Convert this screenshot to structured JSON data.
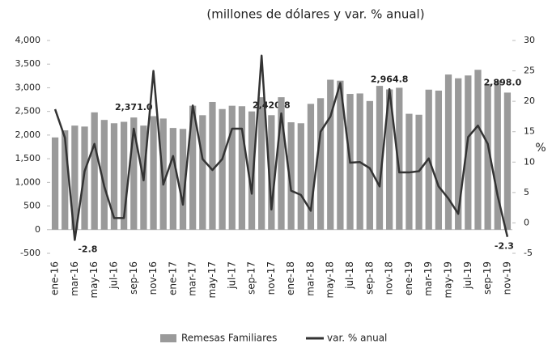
{
  "chart_data": {
    "type": "bar-line",
    "title": "(millones de dólares y var. % anual)",
    "y2_label": "%",
    "categories": [
      "ene-16",
      null,
      "mar-16",
      null,
      "may-16",
      null,
      "jul-16",
      null,
      "sep-16",
      null,
      "nov-16",
      null,
      "ene-17",
      null,
      "mar-17",
      null,
      "may-17",
      null,
      "jul-17",
      null,
      "sep-17",
      null,
      "nov-17",
      null,
      "ene-18",
      null,
      "mar-18",
      null,
      "may-18",
      null,
      "jul-18",
      null,
      "sep-18",
      null,
      "nov-18",
      null,
      "ene-19",
      null,
      "mar-19",
      null,
      "may-19",
      null,
      "jul-19",
      null,
      "sep-19",
      null,
      "nov-19"
    ],
    "series": [
      {
        "name": "Remesas Familiares",
        "type": "bar",
        "color": "#9a9a9a",
        "values": [
          1950,
          2100,
          2200,
          2180,
          2480,
          2320,
          2250,
          2280,
          2371,
          2200,
          2400,
          2350,
          2150,
          2130,
          2620,
          2420,
          2700,
          2550,
          2620,
          2610,
          2500,
          2800,
          2420.8,
          2800,
          2270,
          2250,
          2660,
          2780,
          3170,
          3150,
          2870,
          2880,
          2720,
          3040,
          2964.8,
          3000,
          2450,
          2430,
          2960,
          2940,
          3280,
          3200,
          3260,
          3380,
          3080,
          3150,
          2898
        ],
        "value_labels": [
          null,
          null,
          null,
          null,
          null,
          null,
          null,
          null,
          "2,371.0",
          null,
          null,
          null,
          null,
          null,
          null,
          null,
          null,
          null,
          null,
          null,
          null,
          null,
          "2,420.8",
          null,
          null,
          null,
          null,
          null,
          null,
          null,
          null,
          null,
          null,
          null,
          "2,964.8",
          null,
          null,
          null,
          null,
          null,
          null,
          null,
          null,
          null,
          null,
          null,
          "2,898.0"
        ]
      },
      {
        "name": "var. % anual",
        "type": "line",
        "axis": "y2",
        "color": "#333333",
        "values": [
          18.7,
          14,
          -2.8,
          8.5,
          13,
          6,
          0.8,
          0.8,
          15.5,
          7,
          25,
          6.3,
          11,
          3,
          19.3,
          10.5,
          8.7,
          10.5,
          15.5,
          15.5,
          4.8,
          27.5,
          2.2,
          18,
          5.3,
          4.6,
          2,
          15,
          17.5,
          23,
          9.9,
          10,
          9,
          6,
          22,
          8.3,
          8.3,
          8.5,
          10.6,
          6,
          4,
          1.5,
          14.1,
          16,
          13,
          4.5,
          -2.3
        ],
        "value_labels": [
          null,
          null,
          "-2.8",
          null,
          null,
          null,
          null,
          null,
          null,
          null,
          null,
          null,
          null,
          null,
          null,
          null,
          null,
          null,
          null,
          null,
          null,
          null,
          null,
          null,
          null,
          null,
          null,
          null,
          null,
          null,
          null,
          null,
          null,
          null,
          null,
          null,
          null,
          null,
          null,
          null,
          null,
          null,
          null,
          null,
          null,
          null,
          "-2.3"
        ]
      }
    ],
    "ylim": [
      -500,
      4000
    ],
    "yticks": [
      {
        "value": 4000,
        "label": "4,000"
      },
      {
        "value": 3500,
        "label": "3,500"
      },
      {
        "value": 3000,
        "label": "3,000"
      },
      {
        "value": 2500,
        "label": "2,500"
      },
      {
        "value": 2000,
        "label": "2,000"
      },
      {
        "value": 1500,
        "label": "1,500"
      },
      {
        "value": 1000,
        "label": "1,000"
      },
      500,
      0,
      -500
    ],
    "y2lim": [
      -5,
      30
    ],
    "y2ticks": [
      30,
      25,
      20,
      15,
      10,
      5,
      0,
      -5
    ],
    "grid": false
  }
}
